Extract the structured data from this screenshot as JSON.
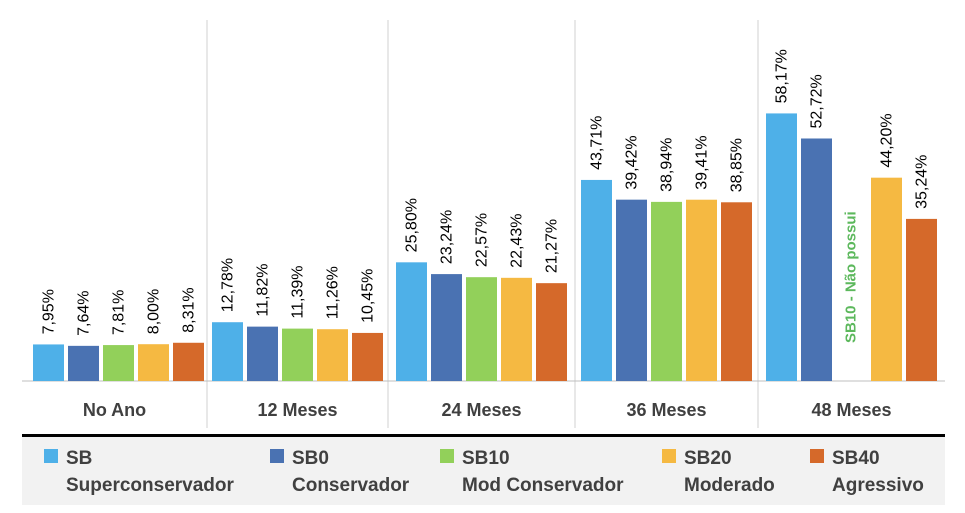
{
  "chart_data": {
    "type": "bar",
    "categories": [
      "No Ano",
      "12 Meses",
      "24 Meses",
      "36 Meses",
      "48 Meses"
    ],
    "series": [
      {
        "name": "SB",
        "name_line2": "Superconservador",
        "color": "#4eb0e8",
        "values": [
          7.95,
          12.78,
          25.8,
          43.71,
          58.17
        ],
        "labels": [
          "7,95%",
          "12,78%",
          "25,80%",
          "43,71%",
          "58,17%"
        ]
      },
      {
        "name": "SB0",
        "name_line2": "Conservador",
        "color": "#4a72b2",
        "values": [
          7.64,
          11.82,
          23.24,
          39.42,
          52.72
        ],
        "labels": [
          "7,64%",
          "11,82%",
          "23,24%",
          "39,42%",
          "52,72%"
        ]
      },
      {
        "name": "SB10",
        "name_line2": "Mod Conservador",
        "color": "#92d05a",
        "values": [
          7.81,
          11.39,
          22.57,
          38.94,
          null
        ],
        "labels": [
          "7,81%",
          "11,39%",
          "22,57%",
          "38,94%",
          null
        ]
      },
      {
        "name": "SB20",
        "name_line2": "Moderado",
        "color": "#f5b942",
        "values": [
          8.0,
          11.26,
          22.43,
          39.41,
          44.2
        ],
        "labels": [
          "8,00%",
          "11,26%",
          "22,43%",
          "39,41%",
          "44,20%"
        ]
      },
      {
        "name": "SB40",
        "name_line2": "Agressivo",
        "color": "#d5692a",
        "values": [
          8.31,
          10.45,
          21.27,
          38.85,
          35.24
        ],
        "labels": [
          "8,31%",
          "10,45%",
          "21,27%",
          "38,85%",
          "35,24%"
        ]
      }
    ],
    "annotation": "SB10 - Não possui",
    "annotation_color": "#5cb85c",
    "ylim": [
      0,
      60
    ],
    "grid": false,
    "legend_position": "bottom"
  }
}
